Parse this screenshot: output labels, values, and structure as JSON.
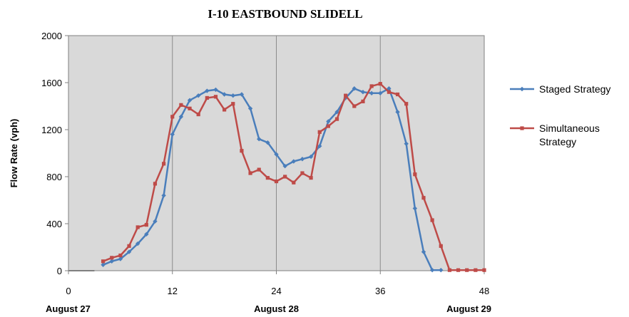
{
  "chart_data": {
    "type": "line",
    "title": "I-10 EASTBOUND  SLIDELL",
    "ylabel": "Flow Rate (vph)",
    "xlabel": "",
    "xlim": [
      0,
      48
    ],
    "ylim": [
      0,
      2000
    ],
    "x_ticks": [
      0,
      12,
      24,
      36,
      48
    ],
    "y_ticks": [
      0,
      400,
      800,
      1200,
      1600,
      2000
    ],
    "x_category_labels": [
      {
        "x": 0,
        "label": "August 27"
      },
      {
        "x": 24,
        "label": "August 28"
      },
      {
        "x": 48,
        "label": "August 29"
      }
    ],
    "grid": "vertical-at-major-ticks",
    "legend_position": "right",
    "series": [
      {
        "name": "Staged Strategy",
        "color": "#4a7ebb",
        "points": [
          [
            4,
            50
          ],
          [
            5,
            80
          ],
          [
            6,
            100
          ],
          [
            7,
            160
          ],
          [
            8,
            230
          ],
          [
            9,
            310
          ],
          [
            10,
            420
          ],
          [
            11,
            640
          ],
          [
            12,
            1160
          ],
          [
            13,
            1310
          ],
          [
            14,
            1450
          ],
          [
            15,
            1490
          ],
          [
            16,
            1530
          ],
          [
            17,
            1540
          ],
          [
            18,
            1500
          ],
          [
            19,
            1490
          ],
          [
            20,
            1500
          ],
          [
            21,
            1380
          ],
          [
            22,
            1120
          ],
          [
            23,
            1090
          ],
          [
            24,
            990
          ],
          [
            25,
            890
          ],
          [
            26,
            930
          ],
          [
            27,
            950
          ],
          [
            28,
            970
          ],
          [
            29,
            1060
          ],
          [
            30,
            1270
          ],
          [
            31,
            1350
          ],
          [
            32,
            1470
          ],
          [
            33,
            1550
          ],
          [
            34,
            1520
          ],
          [
            35,
            1510
          ],
          [
            36,
            1510
          ],
          [
            37,
            1550
          ],
          [
            38,
            1350
          ],
          [
            39,
            1080
          ],
          [
            40,
            530
          ],
          [
            41,
            160
          ],
          [
            42,
            5
          ],
          [
            43,
            5
          ]
        ]
      },
      {
        "name": "Simultaneous Strategy",
        "color": "#be4b48",
        "points": [
          [
            4,
            80
          ],
          [
            5,
            110
          ],
          [
            6,
            130
          ],
          [
            7,
            210
          ],
          [
            8,
            370
          ],
          [
            9,
            390
          ],
          [
            10,
            740
          ],
          [
            11,
            910
          ],
          [
            12,
            1310
          ],
          [
            13,
            1410
          ],
          [
            14,
            1380
          ],
          [
            15,
            1330
          ],
          [
            16,
            1470
          ],
          [
            17,
            1480
          ],
          [
            18,
            1370
          ],
          [
            19,
            1420
          ],
          [
            20,
            1020
          ],
          [
            21,
            830
          ],
          [
            22,
            860
          ],
          [
            23,
            790
          ],
          [
            24,
            760
          ],
          [
            25,
            800
          ],
          [
            26,
            750
          ],
          [
            27,
            830
          ],
          [
            28,
            790
          ],
          [
            29,
            1180
          ],
          [
            30,
            1230
          ],
          [
            31,
            1290
          ],
          [
            32,
            1490
          ],
          [
            33,
            1400
          ],
          [
            34,
            1440
          ],
          [
            35,
            1570
          ],
          [
            36,
            1590
          ],
          [
            37,
            1520
          ],
          [
            38,
            1500
          ],
          [
            39,
            1420
          ],
          [
            40,
            820
          ],
          [
            41,
            620
          ],
          [
            42,
            430
          ],
          [
            43,
            210
          ],
          [
            44,
            5
          ],
          [
            45,
            5
          ],
          [
            46,
            5
          ],
          [
            47,
            5
          ],
          [
            48,
            5
          ]
        ]
      }
    ],
    "baseline_segment": {
      "x": [
        0,
        3
      ],
      "y": 0,
      "color": "#808080"
    }
  }
}
